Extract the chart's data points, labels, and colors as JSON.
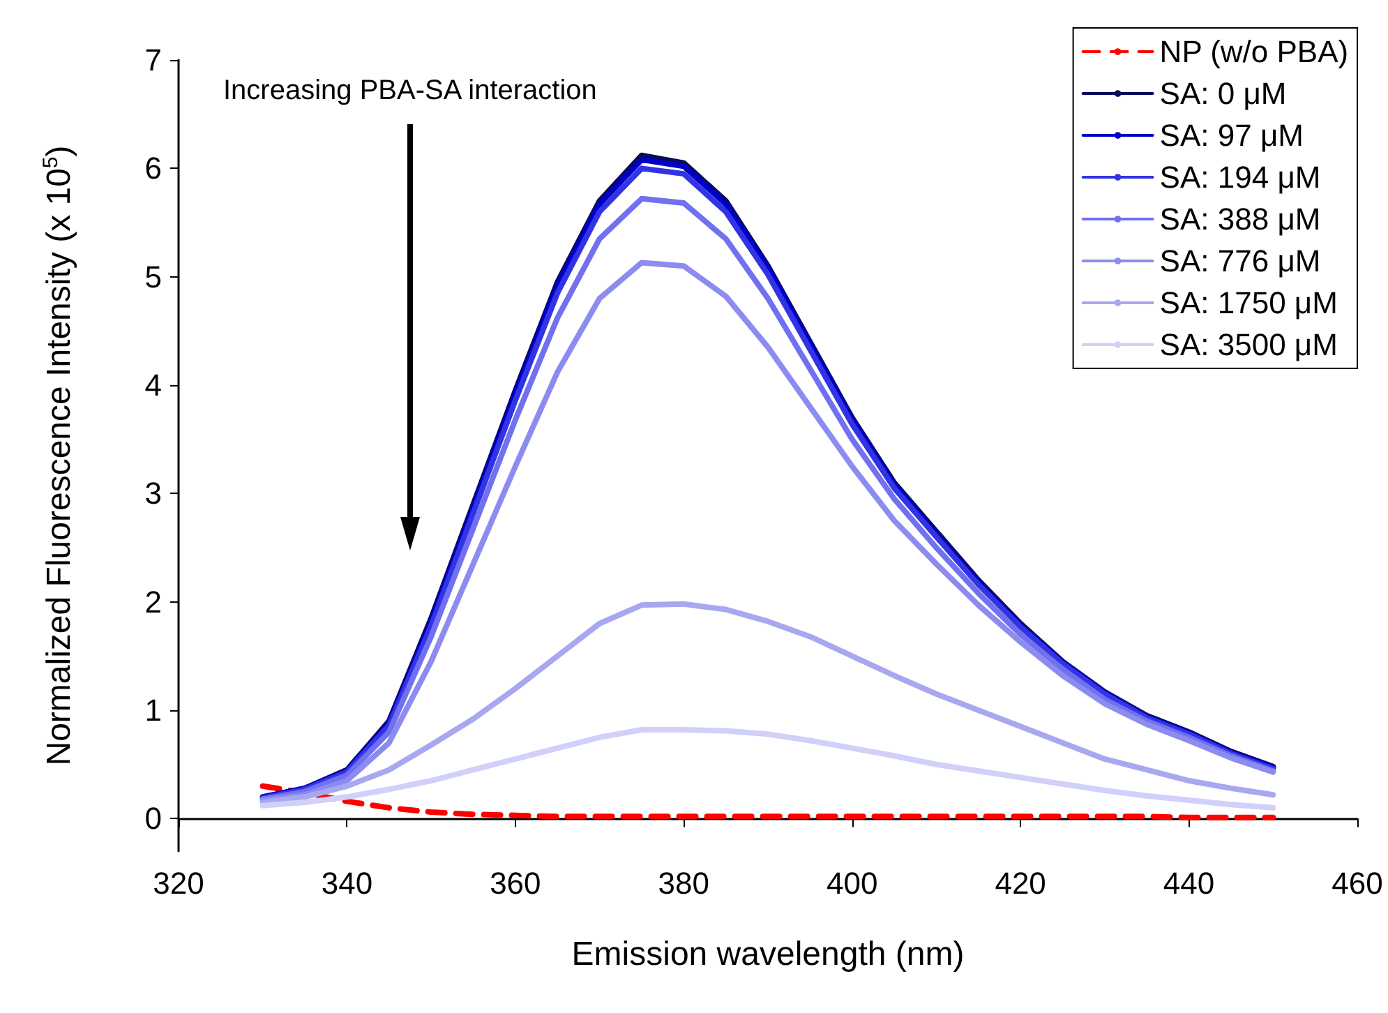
{
  "chart_data": {
    "type": "line",
    "xlabel": "Emission wavelength (nm)",
    "ylabel": "Normalized Fluorescence Intensity (x 10$^{5}$)",
    "x": [
      330,
      335,
      340,
      345,
      350,
      355,
      360,
      365,
      370,
      375,
      380,
      385,
      390,
      395,
      400,
      405,
      410,
      415,
      420,
      425,
      430,
      435,
      440,
      445,
      450
    ],
    "xlim": [
      320,
      460
    ],
    "xticks": [
      320,
      340,
      360,
      380,
      400,
      420,
      440,
      460
    ],
    "ylim": [
      -0.3,
      7
    ],
    "yticks": [
      0,
      1,
      2,
      3,
      4,
      5,
      6,
      7
    ],
    "legend": "top right",
    "annotations": [
      "Increasing PBA-SA interaction"
    ],
    "series": [
      {
        "name": "NP (w/o PBA)",
        "color": "#ff0000",
        "line_style": "dashed",
        "values": [
          0.3,
          0.24,
          0.16,
          0.1,
          0.06,
          0.04,
          0.03,
          0.02,
          0.02,
          0.02,
          0.02,
          0.02,
          0.02,
          0.02,
          0.02,
          0.02,
          0.02,
          0.02,
          0.02,
          0.02,
          0.02,
          0.02,
          0.01,
          0.01,
          0.01
        ]
      },
      {
        "name": "SA: 0 μM",
        "color": "#0a0a5a",
        "values": [
          0.2,
          0.28,
          0.45,
          0.9,
          1.85,
          2.9,
          3.95,
          4.95,
          5.7,
          6.12,
          6.05,
          5.7,
          5.1,
          4.4,
          3.7,
          3.1,
          2.65,
          2.2,
          1.8,
          1.45,
          1.17,
          0.95,
          0.8,
          0.62,
          0.48
        ]
      },
      {
        "name": "SA: 97 μM",
        "color": "#0000c8",
        "values": [
          0.2,
          0.28,
          0.44,
          0.88,
          1.82,
          2.87,
          3.92,
          4.92,
          5.67,
          6.08,
          6.02,
          5.67,
          5.08,
          4.38,
          3.68,
          3.08,
          2.62,
          2.18,
          1.78,
          1.44,
          1.16,
          0.94,
          0.79,
          0.61,
          0.47
        ]
      },
      {
        "name": "SA: 194 μM",
        "color": "#3333e6",
        "values": [
          0.19,
          0.27,
          0.43,
          0.86,
          1.78,
          2.82,
          3.86,
          4.85,
          5.6,
          6.0,
          5.95,
          5.6,
          5.02,
          4.33,
          3.64,
          3.05,
          2.6,
          2.16,
          1.77,
          1.43,
          1.15,
          0.93,
          0.78,
          0.6,
          0.46
        ]
      },
      {
        "name": "SA: 388 μM",
        "color": "#7070f0",
        "values": [
          0.18,
          0.25,
          0.4,
          0.8,
          1.68,
          2.68,
          3.68,
          4.62,
          5.35,
          5.72,
          5.68,
          5.35,
          4.8,
          4.15,
          3.5,
          2.95,
          2.5,
          2.08,
          1.7,
          1.38,
          1.1,
          0.9,
          0.75,
          0.58,
          0.44
        ]
      },
      {
        "name": "SA: 776 μM",
        "color": "#8c8cf0",
        "values": [
          0.17,
          0.22,
          0.35,
          0.7,
          1.45,
          2.35,
          3.25,
          4.12,
          4.8,
          5.13,
          5.1,
          4.82,
          4.35,
          3.8,
          3.25,
          2.75,
          2.35,
          1.97,
          1.63,
          1.32,
          1.06,
          0.87,
          0.72,
          0.56,
          0.43
        ]
      },
      {
        "name": "SA: 1750 μM",
        "color": "#a8a8f0",
        "values": [
          0.15,
          0.2,
          0.3,
          0.45,
          0.68,
          0.92,
          1.2,
          1.5,
          1.8,
          1.97,
          1.98,
          1.93,
          1.82,
          1.68,
          1.5,
          1.32,
          1.15,
          1.0,
          0.85,
          0.7,
          0.55,
          0.45,
          0.35,
          0.28,
          0.22
        ]
      },
      {
        "name": "SA: 3500 μM",
        "color": "#d0d0fa",
        "values": [
          0.12,
          0.15,
          0.2,
          0.27,
          0.35,
          0.45,
          0.55,
          0.65,
          0.75,
          0.82,
          0.82,
          0.81,
          0.78,
          0.72,
          0.65,
          0.58,
          0.5,
          0.44,
          0.38,
          0.32,
          0.26,
          0.21,
          0.17,
          0.13,
          0.1
        ]
      }
    ]
  }
}
